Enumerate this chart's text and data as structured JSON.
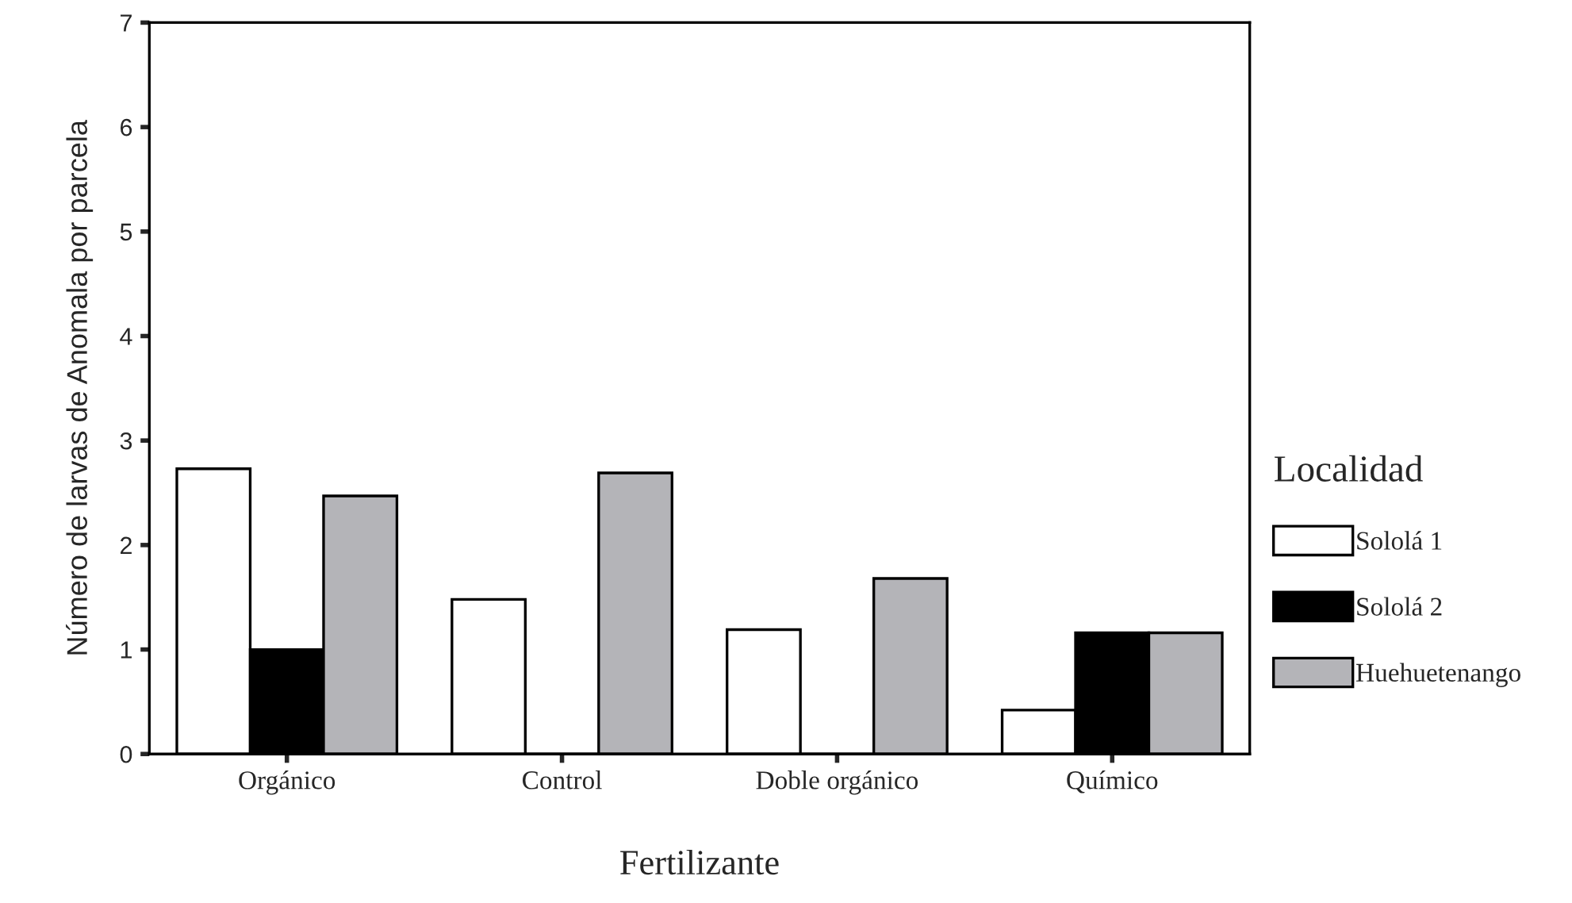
{
  "chart_data": {
    "type": "bar",
    "xlabel": "Fertilizante",
    "ylabel": "Número de larvas de Anomala por parcela",
    "legend_title": "Localidad",
    "categories": [
      "Orgánico",
      "Control",
      "Doble orgánico",
      "Químico"
    ],
    "series": [
      {
        "name": "Sololá 1",
        "color": "#ffffff",
        "values": [
          2.73,
          1.48,
          1.19,
          0.42
        ]
      },
      {
        "name": "Sololá 2",
        "color": "#000000",
        "values": [
          1.0,
          0,
          0,
          1.16
        ]
      },
      {
        "name": "Huehuetenango",
        "color": "#b4b4b8",
        "values": [
          2.47,
          2.69,
          1.68,
          1.16
        ]
      }
    ],
    "ylim": [
      0,
      7
    ],
    "yticks": [
      0,
      1,
      2,
      3,
      4,
      5,
      6,
      7
    ],
    "grid": false,
    "legend": "right"
  }
}
